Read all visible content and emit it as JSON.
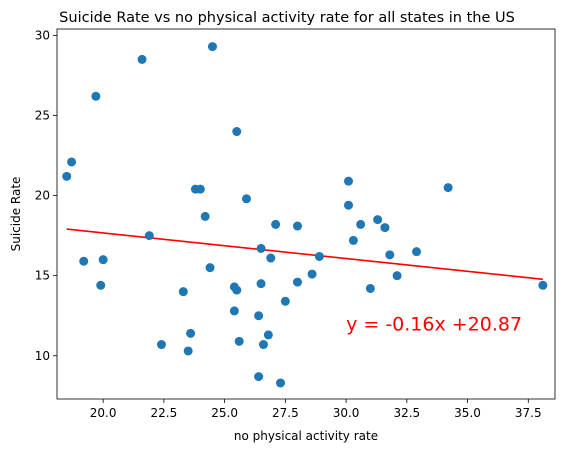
{
  "chart_data": {
    "type": "scatter",
    "title": "Suicide Rate vs no physical activity rate for all states in the US",
    "xlabel": "no physical activity rate",
    "ylabel": "Suicide Rate",
    "xlim": [
      18.1,
      38.6
    ],
    "ylim": [
      7.3,
      30.4
    ],
    "xticks": [
      20.0,
      22.5,
      25.0,
      27.5,
      30.0,
      32.5,
      35.0,
      37.5
    ],
    "xtick_labels": [
      "20.0",
      "22.5",
      "25.0",
      "27.5",
      "30.0",
      "32.5",
      "35.0",
      "37.5"
    ],
    "yticks": [
      10,
      15,
      20,
      25,
      30
    ],
    "ytick_labels": [
      "10",
      "15",
      "20",
      "25",
      "30"
    ],
    "grid": false,
    "marker_color": "#1f77b4",
    "line_color": "#ff0000",
    "points": [
      {
        "x": 18.5,
        "y": 21.2
      },
      {
        "x": 18.7,
        "y": 22.1
      },
      {
        "x": 19.2,
        "y": 15.9
      },
      {
        "x": 19.7,
        "y": 26.2
      },
      {
        "x": 19.9,
        "y": 14.4
      },
      {
        "x": 20.0,
        "y": 16.0
      },
      {
        "x": 21.6,
        "y": 28.5
      },
      {
        "x": 21.9,
        "y": 17.5
      },
      {
        "x": 22.4,
        "y": 10.7
      },
      {
        "x": 23.3,
        "y": 14.0
      },
      {
        "x": 23.5,
        "y": 10.3
      },
      {
        "x": 23.6,
        "y": 11.4
      },
      {
        "x": 23.8,
        "y": 20.4
      },
      {
        "x": 24.0,
        "y": 20.4
      },
      {
        "x": 24.2,
        "y": 18.7
      },
      {
        "x": 24.4,
        "y": 15.5
      },
      {
        "x": 24.5,
        "y": 29.3
      },
      {
        "x": 25.4,
        "y": 12.8
      },
      {
        "x": 25.4,
        "y": 14.3
      },
      {
        "x": 25.5,
        "y": 14.1
      },
      {
        "x": 25.5,
        "y": 24.0
      },
      {
        "x": 25.6,
        "y": 10.9
      },
      {
        "x": 25.9,
        "y": 19.8
      },
      {
        "x": 26.4,
        "y": 12.5
      },
      {
        "x": 26.4,
        "y": 8.7
      },
      {
        "x": 26.5,
        "y": 16.7
      },
      {
        "x": 26.5,
        "y": 14.5
      },
      {
        "x": 26.6,
        "y": 10.7
      },
      {
        "x": 26.8,
        "y": 11.3
      },
      {
        "x": 26.9,
        "y": 16.1
      },
      {
        "x": 27.1,
        "y": 18.2
      },
      {
        "x": 27.3,
        "y": 8.3
      },
      {
        "x": 27.5,
        "y": 13.4
      },
      {
        "x": 28.0,
        "y": 14.6
      },
      {
        "x": 28.0,
        "y": 18.1
      },
      {
        "x": 28.6,
        "y": 15.1
      },
      {
        "x": 28.9,
        "y": 16.2
      },
      {
        "x": 30.1,
        "y": 20.9
      },
      {
        "x": 30.1,
        "y": 19.4
      },
      {
        "x": 30.3,
        "y": 17.2
      },
      {
        "x": 30.6,
        "y": 18.2
      },
      {
        "x": 31.0,
        "y": 14.2
      },
      {
        "x": 31.3,
        "y": 18.5
      },
      {
        "x": 31.6,
        "y": 18.0
      },
      {
        "x": 31.8,
        "y": 16.3
      },
      {
        "x": 32.1,
        "y": 15.0
      },
      {
        "x": 32.9,
        "y": 16.5
      },
      {
        "x": 34.2,
        "y": 20.5
      },
      {
        "x": 38.1,
        "y": 14.4
      }
    ],
    "regression": {
      "slope": -0.16,
      "intercept": 20.87,
      "x_range": [
        18.5,
        38.1
      ],
      "equation_label": "y = -0.16x +20.87",
      "label_position": {
        "x": 30.0,
        "y": 12.0
      }
    }
  }
}
